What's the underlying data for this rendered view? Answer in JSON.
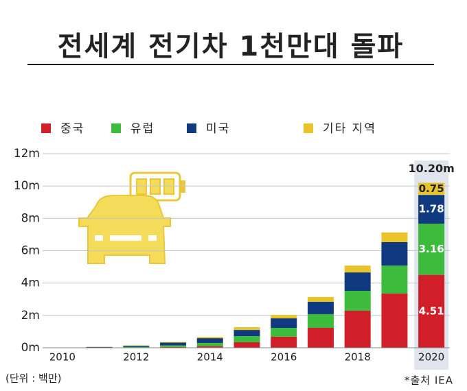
{
  "chart_data": {
    "type": "stacked-bar",
    "title": "전세계 전기차 1천만대 돌파",
    "unit_note": "(단위 :  백만)",
    "source": "*출처 IEA",
    "categories": [
      "2010",
      null,
      "2012",
      null,
      "2014",
      null,
      "2016",
      null,
      "2018",
      null,
      "2020"
    ],
    "series": [
      {
        "name": "중국",
        "color": "#d11f2a",
        "values": [
          0,
          0.01,
          0.02,
          0.05,
          0.1,
          0.34,
          0.68,
          1.23,
          2.29,
          3.35,
          4.51
        ],
        "value_labels": [
          null,
          null,
          null,
          null,
          null,
          null,
          null,
          null,
          null,
          null,
          "4.51"
        ]
      },
      {
        "name": "유럽",
        "color": "#3dbb3d",
        "values": [
          0,
          0.01,
          0.04,
          0.1,
          0.2,
          0.38,
          0.55,
          0.85,
          1.23,
          1.73,
          3.16
        ],
        "value_labels": [
          null,
          null,
          null,
          null,
          null,
          null,
          null,
          null,
          null,
          null,
          "3.16"
        ]
      },
      {
        "name": "미국",
        "color": "#0f3a80",
        "values": [
          0.01,
          0.03,
          0.07,
          0.17,
          0.29,
          0.38,
          0.59,
          0.76,
          1.14,
          1.45,
          1.78
        ],
        "value_labels": [
          null,
          null,
          null,
          null,
          null,
          null,
          null,
          null,
          null,
          null,
          "1.78"
        ]
      },
      {
        "name": "기타 지역",
        "color": "#e8c32a",
        "values": [
          0,
          0.01,
          0.02,
          0.04,
          0.08,
          0.17,
          0.21,
          0.3,
          0.42,
          0.6,
          0.75
        ],
        "value_labels": [
          null,
          null,
          null,
          null,
          null,
          null,
          null,
          null,
          null,
          null,
          "0.75"
        ]
      }
    ],
    "annotations": [
      {
        "text": "10.20m",
        "category": "2020"
      }
    ],
    "ylim": [
      0,
      12
    ],
    "yticks": [
      {
        "value": 0,
        "label": "0m"
      },
      {
        "value": 2,
        "label": "2m"
      },
      {
        "value": 4,
        "label": "4m"
      },
      {
        "value": 6,
        "label": "6m"
      },
      {
        "value": 8,
        "label": "8m"
      },
      {
        "value": 10,
        "label": "10m"
      },
      {
        "value": 12,
        "label": "12m"
      }
    ],
    "grid": true,
    "legend_position": "top",
    "highlight_color": "#dfe4ed"
  }
}
